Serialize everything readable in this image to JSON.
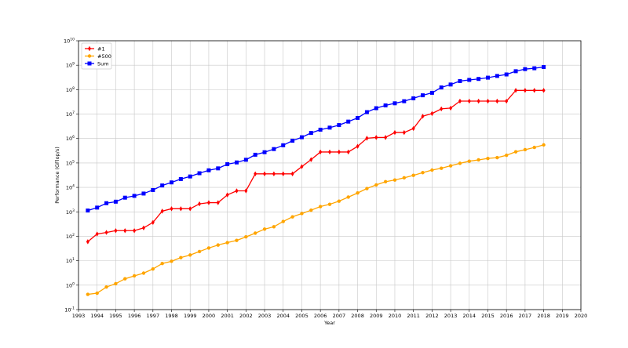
{
  "chart_data": {
    "type": "line",
    "title": "",
    "xlabel": "Year",
    "ylabel": "Performance (GFlop/s)",
    "yscale": "log",
    "xlim": [
      1993,
      2020
    ],
    "ylim_exponents": [
      -1,
      10
    ],
    "x_ticks": [
      "1993",
      "1994",
      "1995",
      "1996",
      "1997",
      "1998",
      "1999",
      "2000",
      "2001",
      "2002",
      "2003",
      "2004",
      "2005",
      "2006",
      "2007",
      "2008",
      "2009",
      "2010",
      "2011",
      "2012",
      "2013",
      "2014",
      "2015",
      "2016",
      "2017",
      "2018",
      "2019",
      "2020"
    ],
    "y_tick_base": "10",
    "y_tick_exponents": [
      "-1",
      "0",
      "1",
      "2",
      "3",
      "4",
      "5",
      "6",
      "7",
      "8",
      "9",
      "10"
    ],
    "grid": true,
    "legend_position": "top-left",
    "x": [
      1993.5,
      1994.0,
      1994.5,
      1995.0,
      1995.5,
      1996.0,
      1996.5,
      1997.0,
      1997.5,
      1998.0,
      1998.5,
      1999.0,
      1999.5,
      2000.0,
      2000.5,
      2001.0,
      2001.5,
      2002.0,
      2002.5,
      2003.0,
      2003.5,
      2004.0,
      2004.5,
      2005.0,
      2005.5,
      2006.0,
      2006.5,
      2007.0,
      2007.5,
      2008.0,
      2008.5,
      2009.0,
      2009.5,
      2010.0,
      2010.5,
      2011.0,
      2011.5,
      2012.0,
      2012.5,
      2013.0,
      2013.5,
      2014.0,
      2014.5,
      2015.0,
      2015.5,
      2016.0,
      2016.5,
      2017.0,
      2017.5,
      2018.0
    ],
    "series": [
      {
        "name": "#1",
        "color": "#ff0000",
        "marker": "diamond",
        "values": [
          60,
          124,
          143,
          170,
          170,
          170,
          220,
          368,
          1068,
          1338,
          1338,
          1338,
          2121,
          2379,
          2379,
          4938,
          7226,
          7226,
          35860,
          35860,
          35860,
          35860,
          35860,
          70720,
          136800,
          280600,
          280600,
          280600,
          280600,
          478200,
          1026000,
          1105000,
          1105000,
          1759000,
          1759000,
          2566000,
          8162000,
          10510000,
          16324000,
          17590000,
          33860000,
          33860000,
          33860000,
          33860000,
          33860000,
          33860000,
          93010000,
          93010000,
          93010000,
          93010000
        ]
      },
      {
        "name": "#500",
        "color": "#ffa500",
        "marker": "circle",
        "values": [
          0.42,
          0.47,
          0.84,
          1.15,
          1.82,
          2.4,
          3.1,
          4.6,
          7.68,
          9.51,
          13.4,
          17.1,
          23.8,
          33.1,
          43.8,
          55.1,
          67.8,
          94.5,
          134,
          196,
          245,
          403,
          624,
          850,
          1166,
          1646,
          2030,
          2736,
          4005,
          5900,
          9000,
          12640,
          17100,
          20050,
          24670,
          31120,
          40190,
          51090,
          60820,
          76500,
          96620,
          117800,
          133700,
          153000,
          165000,
          206000,
          286000,
          349000,
          432000,
          548000
        ]
      },
      {
        "name": "Sum",
        "color": "#0000ff",
        "marker": "square",
        "values": [
          1130,
          1490,
          2260,
          2600,
          3800,
          4500,
          5600,
          7800,
          12000,
          16000,
          22000,
          28000,
          38000,
          50000,
          60000,
          89000,
          105000,
          135000,
          217000,
          275000,
          370000,
          530000,
          813000,
          1127000,
          1690000,
          2300000,
          2790000,
          3550000,
          4920000,
          6970000,
          12000000,
          17400000,
          22600000,
          27600000,
          33600000,
          44200000,
          58700000,
          74100000,
          123000000,
          162000000,
          224000000,
          250000000,
          274000000,
          309000000,
          363000000,
          418000000,
          567000000,
          692000000,
          750000000,
          845000000
        ]
      }
    ]
  }
}
